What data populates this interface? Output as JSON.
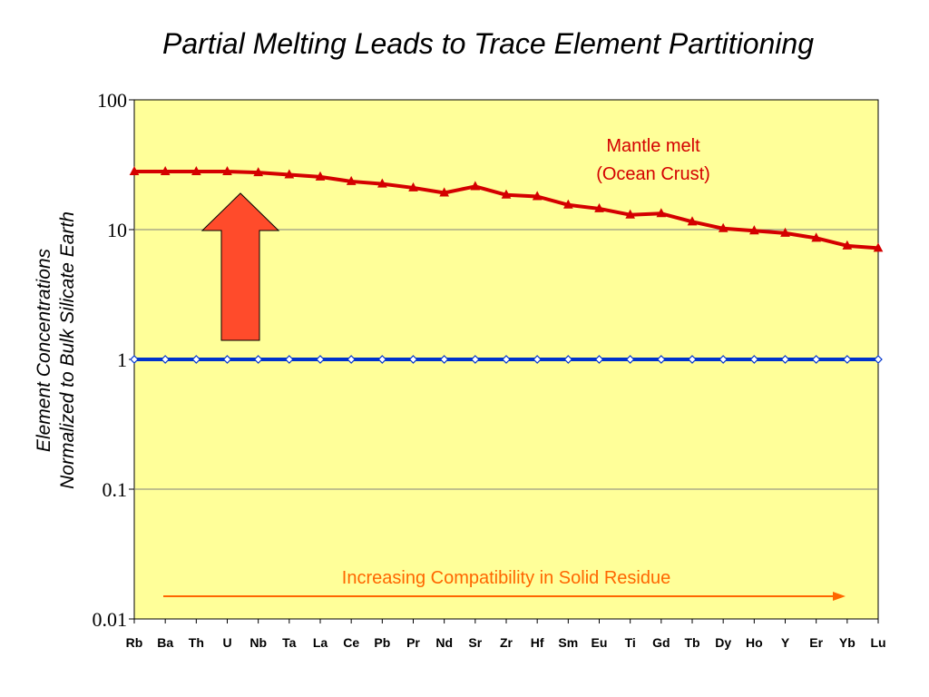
{
  "chart_data": {
    "type": "line",
    "title": "Partial Melting Leads to Trace Element Partitioning",
    "ylabel_lines": [
      "Element Concentrations",
      "Normalized to Bulk Silicate Earth"
    ],
    "yscale": "log",
    "ylim": [
      0.01,
      100
    ],
    "y_ticks": [
      "100",
      "10",
      "1",
      "0.1",
      "0.01"
    ],
    "grid": "horizontal",
    "categories": [
      "Rb",
      "Ba",
      "Th",
      "U",
      "Nb",
      "Ta",
      "La",
      "Ce",
      "Pb",
      "Pr",
      "Nd",
      "Sr",
      "Zr",
      "Hf",
      "Sm",
      "Eu",
      "Ti",
      "Gd",
      "Tb",
      "Dy",
      "Ho",
      "Y",
      "Er",
      "Yb",
      "Lu"
    ],
    "series": [
      {
        "color": "#d40000",
        "marker": "triangle",
        "values": [
          28,
          28,
          28,
          28,
          27.5,
          26.5,
          25.5,
          23.5,
          22.5,
          21,
          19.2,
          21.5,
          18.5,
          18,
          15.5,
          14.5,
          13,
          13.3,
          11.5,
          10.2,
          9.8,
          9.4,
          8.6,
          7.5,
          7.2
        ]
      },
      {
        "color": "#0033cc",
        "marker": "diamond",
        "values": [
          1,
          1,
          1,
          1,
          1,
          1,
          1,
          1,
          1,
          1,
          1,
          1,
          1,
          1,
          1,
          1,
          1,
          1,
          1,
          1,
          1,
          1,
          1,
          1,
          1
        ]
      }
    ],
    "annotations": {
      "melt_label_lines": [
        "Mantle melt",
        "(Ocean Crust)"
      ],
      "compatibility_label": "Increasing Compatibility in Solid Residue"
    },
    "colors": {
      "plot_background": "#ffff99",
      "arrow_fill": "#ff4b2b",
      "compatibility_arrow": "#ff6600"
    }
  }
}
